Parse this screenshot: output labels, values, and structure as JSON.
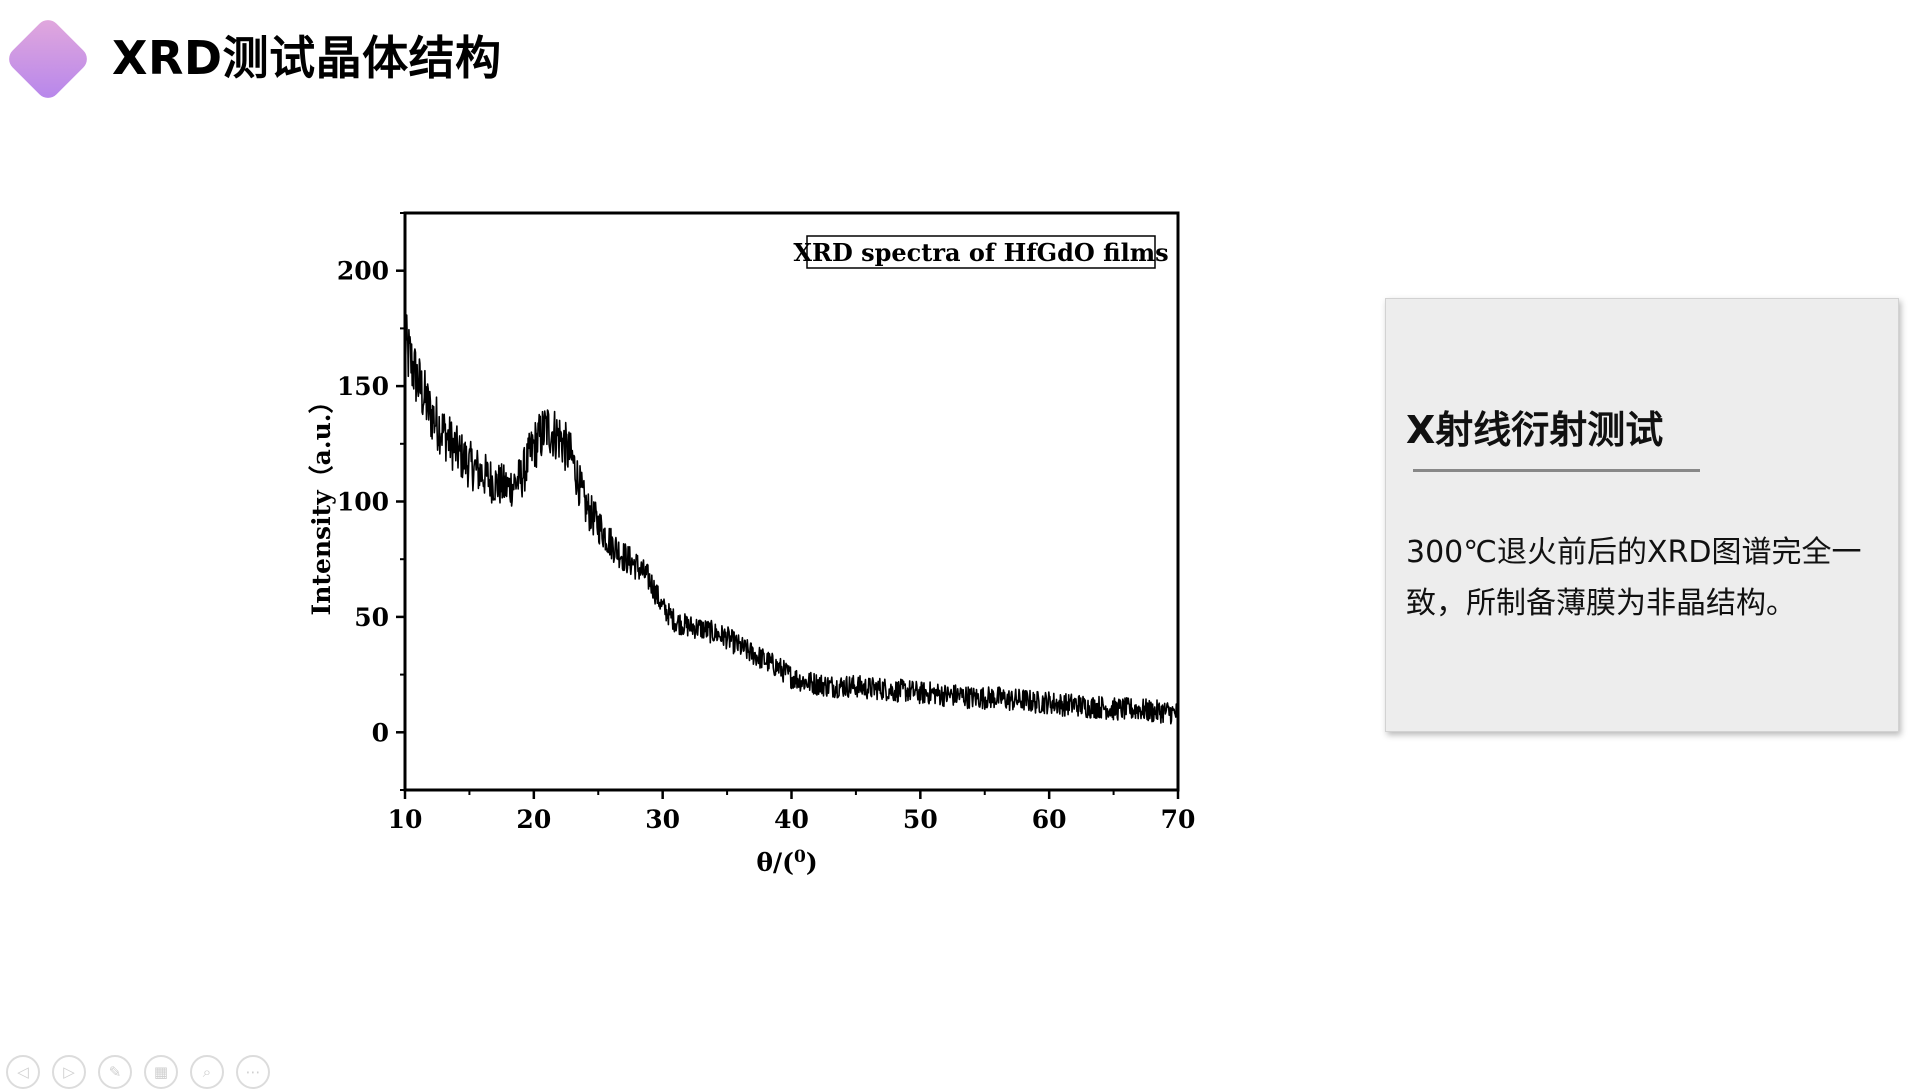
{
  "slide": {
    "title": "XRD测试晶体结构"
  },
  "card": {
    "heading": "X射线衍射测试",
    "body": "300℃退火前后的XRD图谱完全一致，所制备薄膜为非晶结构。"
  },
  "toolbar": {
    "buttons": [
      {
        "name": "previous-slide-button",
        "icon": "◁"
      },
      {
        "name": "next-slide-button",
        "icon": "▷"
      },
      {
        "name": "pen-tool-button",
        "icon": "✎"
      },
      {
        "name": "slide-overview-button",
        "icon": "▦"
      },
      {
        "name": "zoom-button",
        "icon": "⌕"
      },
      {
        "name": "more-options-button",
        "icon": "⋯"
      }
    ]
  },
  "chart_data": {
    "type": "line",
    "legend_text": "XRD spectra of HfGdO films",
    "legend_placement": "top-right",
    "xlabel": "θ/(",
    "xlabel_sup": "0",
    "xlabel_close": ")",
    "ylabel": "Intensity（a.u.）",
    "xlim": [
      10,
      70
    ],
    "ylim": [
      -25,
      225
    ],
    "x_ticks": [
      10,
      20,
      30,
      40,
      50,
      60,
      70
    ],
    "y_ticks": [
      0,
      50,
      100,
      150,
      200
    ],
    "grid": false,
    "line_color": "#000000",
    "series": [
      {
        "x": [
          10,
          11,
          12,
          13,
          14,
          15,
          16,
          17,
          18,
          19,
          20,
          21,
          22,
          23,
          24,
          25,
          26,
          27,
          28,
          29,
          30,
          31,
          32,
          33,
          34,
          35,
          36,
          37,
          38,
          39,
          40,
          41,
          42,
          43,
          44,
          45,
          46,
          47,
          48,
          49,
          50,
          51,
          52,
          53,
          54,
          55,
          56,
          57,
          58,
          59,
          60,
          61,
          62,
          63,
          64,
          65,
          66,
          67,
          68,
          69,
          70
        ],
        "y": [
          168,
          152,
          138,
          130,
          122,
          116,
          112,
          108,
          106,
          110,
          124,
          132,
          128,
          118,
          98,
          90,
          82,
          76,
          72,
          66,
          54,
          48,
          46,
          45,
          43,
          41,
          37,
          34,
          31,
          28,
          24,
          22,
          21,
          20,
          20,
          20,
          19,
          19,
          18,
          18,
          17,
          17,
          16,
          16,
          15,
          15,
          15,
          14,
          14,
          13,
          13,
          12,
          12,
          11,
          11,
          10,
          10,
          10,
          9,
          9,
          8
        ]
      }
    ]
  }
}
